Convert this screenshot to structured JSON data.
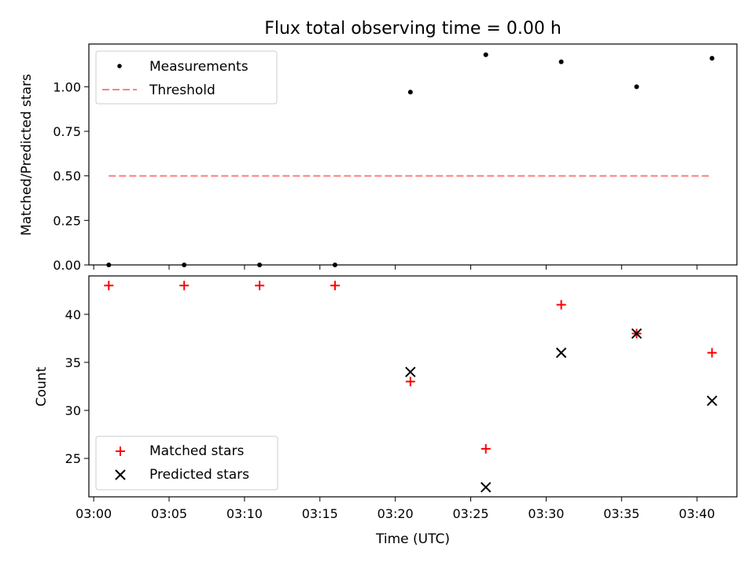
{
  "colors": {
    "measurement": "#000000",
    "threshold": "#ff7f7f",
    "matched": "#ff0000",
    "predicted": "#000000"
  },
  "chart_data": [
    {
      "type": "scatter",
      "title": "Flux total observing time = 0.00 h",
      "xlabel": "",
      "ylabel": "Matched/Predicted stars",
      "ylim": [
        0,
        1.24
      ],
      "x_tick_labels_shown": false,
      "y_ticks": [
        "0.00",
        "0.25",
        "0.50",
        "0.75",
        "1.00"
      ],
      "legend_position": "top-left",
      "series": [
        {
          "name": "Measurements",
          "marker": "dot",
          "x": [
            "03:01",
            "03:06",
            "03:11",
            "03:16",
            "03:21",
            "03:26",
            "03:31",
            "03:36",
            "03:41"
          ],
          "y": [
            0.0,
            0.0,
            0.0,
            0.0,
            0.97,
            1.18,
            1.14,
            1.0,
            1.16
          ]
        },
        {
          "name": "Threshold",
          "type": "line",
          "style": "dashed",
          "x": [
            "03:01",
            "03:41"
          ],
          "y": [
            0.5,
            0.5
          ]
        }
      ]
    },
    {
      "type": "scatter",
      "title": "",
      "xlabel": "Time (UTC)",
      "ylabel": "Count",
      "ylim": [
        21,
        44
      ],
      "xlim": [
        "03:00",
        "03:43"
      ],
      "x_ticks": [
        "03:00",
        "03:05",
        "03:10",
        "03:15",
        "03:20",
        "03:25",
        "03:30",
        "03:35",
        "03:40"
      ],
      "y_ticks": [
        "25",
        "30",
        "35",
        "40"
      ],
      "legend_position": "bottom-left",
      "series": [
        {
          "name": "Matched stars",
          "marker": "plus",
          "x": [
            "03:01",
            "03:06",
            "03:11",
            "03:16",
            "03:21",
            "03:26",
            "03:31",
            "03:36",
            "03:41"
          ],
          "y": [
            43,
            43,
            43,
            43,
            33,
            26,
            41,
            38,
            36
          ]
        },
        {
          "name": "Predicted stars",
          "marker": "x",
          "x": [
            "03:21",
            "03:26",
            "03:31",
            "03:36",
            "03:41"
          ],
          "y": [
            34,
            22,
            36,
            38,
            31
          ]
        }
      ]
    }
  ]
}
